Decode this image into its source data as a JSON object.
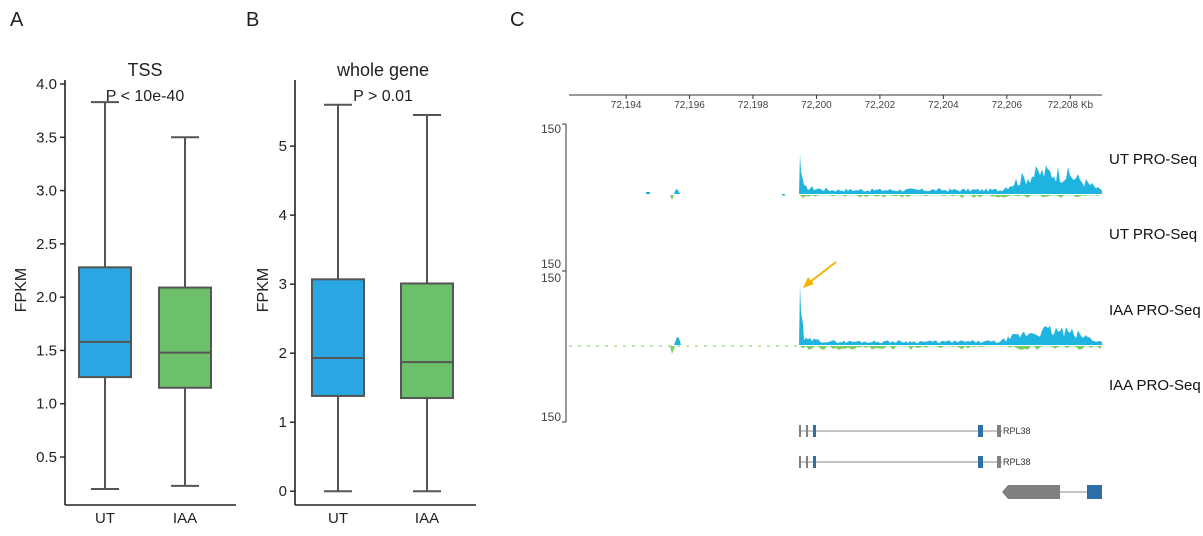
{
  "panels": {
    "a": {
      "letter": "A"
    },
    "b": {
      "letter": "B"
    },
    "c": {
      "letter": "C"
    }
  },
  "colors": {
    "ut": "#2aa7e3",
    "iaa": "#6cc06a",
    "track_blue": "#1fb3e0",
    "track_green": "#7bcf5e",
    "arrow": "#f5b400",
    "gene_blue": "#2f6fa6",
    "gene_gray": "#808080"
  },
  "chart_data": [
    {
      "type": "box",
      "title": "TSS",
      "annotation": "P < 10e-40",
      "ylabel": "FPKM",
      "categories": [
        "UT",
        "IAA"
      ],
      "ylim": [
        0.05,
        4.0
      ],
      "yticks": [
        "0.5",
        "1.0",
        "1.5",
        "2.0",
        "2.5",
        "3.0",
        "3.5",
        "4.0"
      ],
      "ytick_values": [
        0.5,
        1.0,
        1.5,
        2.0,
        2.5,
        3.0,
        3.5,
        4.0
      ],
      "series": [
        {
          "category": "UT",
          "min": 0.2,
          "q1": 1.25,
          "median": 1.58,
          "q3": 2.28,
          "max": 3.83,
          "color": "#2aa7e3"
        },
        {
          "category": "IAA",
          "min": 0.23,
          "q1": 1.15,
          "median": 1.48,
          "q3": 2.09,
          "max": 3.5,
          "color": "#6cc06a"
        }
      ]
    },
    {
      "type": "box",
      "title": "whole gene",
      "annotation": "P > 0.01",
      "ylabel": "FPKM",
      "categories": [
        "UT",
        "IAA"
      ],
      "ylim": [
        -0.2,
        5.9
      ],
      "yticks": [
        "0",
        "1",
        "2",
        "3",
        "4",
        "5"
      ],
      "ytick_values": [
        0,
        1,
        2,
        3,
        4,
        5
      ],
      "series": [
        {
          "category": "UT",
          "min": 0.0,
          "q1": 1.38,
          "median": 1.93,
          "q3": 3.07,
          "max": 5.6,
          "color": "#2aa7e3"
        },
        {
          "category": "IAA",
          "min": 0.0,
          "q1": 1.35,
          "median": 1.87,
          "q3": 3.01,
          "max": 5.45,
          "color": "#6cc06a"
        }
      ]
    },
    {
      "type": "area",
      "subtype": "genome-browser",
      "x_ticks": [
        "72,194",
        "72,196",
        "72,198",
        "72,200",
        "72,202",
        "72,204",
        "72,206",
        "72,208 Kb"
      ],
      "x_tick_values": [
        72194,
        72196,
        72198,
        72200,
        72202,
        72204,
        72206,
        72208
      ],
      "xlim": [
        72192.2,
        72209.0
      ],
      "scale_labels": [
        "150",
        "150",
        "150",
        "150"
      ],
      "tracks": [
        {
          "label": "UT PRO-Seq"
        },
        {
          "label": "UT PRO-Seq"
        },
        {
          "label": "IAA PRO-Seq"
        },
        {
          "label": "IAA PRO-Seq"
        }
      ],
      "genes": [
        {
          "label": "RPL38"
        },
        {
          "label": "RPL38"
        }
      ]
    }
  ]
}
